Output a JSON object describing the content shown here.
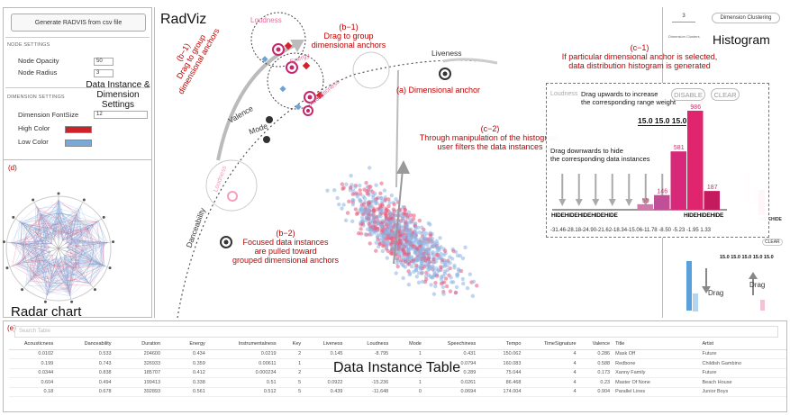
{
  "left": {
    "generate_button": "Generate RADVIS from csv file",
    "node_settings": "NODE SETTINGS",
    "node_opacity_label": "Node Opacity",
    "node_opacity_value": "50",
    "node_radius_label": "Node Radius",
    "node_radius_value": "3",
    "annot_settings": "Data Instance &\nDimension Settings",
    "dimension_settings": "DIMENSION SETTINGS",
    "font_size_label": "Dimension FontSize",
    "font_size_value": "12",
    "high_color_label": "High Color",
    "high_color": "#d0202a",
    "low_color_label": "Low Color",
    "low_color": "#7aa8d8",
    "panel_d": "(d)",
    "radar_title": "Radar chart"
  },
  "center": {
    "title": "RadViz",
    "b1_top": "(b−1)\nDrag to group\ndimensional anchors",
    "b1_left": "(b−1)\nDrag to group\ndimensional anchors",
    "anchor_label": "(a) Dimensional anchor",
    "c2": "(c−2)\nThrough manipulation of the histogram,\nuser filters the data instances",
    "b2": "(b−2)\nFocused data instances\nare pulled toward\ngrouped dimensional anchors",
    "c1": "(c−1)\nIf particular dimensional anchor is selected,\ndata distribution histogram is generated",
    "anchors": {
      "loudness": "Loudness",
      "energy": "Energy",
      "acousticness": "Acousticness",
      "liveness": "Liveness",
      "valence": "Valence",
      "mode": "Mode",
      "danceability": "Danceability",
      "loudness_ghost": "Loudness"
    }
  },
  "right": {
    "cluster_value": "3",
    "cluster_button": "Dimension Clustering",
    "cluster_label": "Dimension Clusters",
    "hist_title": "Histogram",
    "drag1": "Drag",
    "drag2": "Drag",
    "mini_clear": "CLEAR",
    "mini_hide": "HIDEHIDE",
    "mini_vals": "15.0 15.0 15.0 15.0 15.0"
  },
  "popup": {
    "title": "Loudness",
    "drag_up": "Drag upwards to increase\nthe corresponding range weight",
    "disable": "DISABLE",
    "clear": "CLEAR",
    "weights": "15.0 15.0 15.0",
    "drag_down": "Drag downwards to hide\nthe corresponding data instances",
    "hide_left": "HIDEHIDEHIDEHIDEHIDE",
    "hide_right": "HIDEHIDEHIDE",
    "ticks": "-31.46-28.18-24.90-21.62-18.34-15.06-11.78 -8.50  -5.23  -1.95  1.33",
    "bar_counts": [
      "55",
      "146",
      "581",
      "986",
      "187"
    ]
  },
  "chart_data": {
    "type": "bar",
    "title": "Loudness",
    "categories": [
      "-31.46",
      "-28.18",
      "-24.90",
      "-21.62",
      "-18.34",
      "-15.06",
      "-11.78",
      "-8.50",
      "-5.23",
      "-1.95"
    ],
    "values": [
      0,
      0,
      0,
      0,
      0,
      55,
      146,
      581,
      986,
      187
    ],
    "xlabel": "",
    "ylabel": ""
  },
  "table": {
    "search_placeholder": "Search Table",
    "title": "Data Instance Table",
    "panel_e": "(e)",
    "headers": [
      "Acousticness",
      "Danceability",
      "Duration",
      "Energy",
      "Instrumentalness",
      "Key",
      "Liveness",
      "Loudness",
      "Mode",
      "Speechiness",
      "Tempo",
      "TimeSignature",
      "Valence",
      "Title",
      "Artist"
    ],
    "rows": [
      [
        "0.0102",
        "0.533",
        "204600",
        "0.434",
        "0.0219",
        "2",
        "0.145",
        "-8.795",
        "1",
        "0.431",
        "150.062",
        "4",
        "0.286",
        "Mask Off",
        "Future"
      ],
      [
        "0.199",
        "0.743",
        "326933",
        "0.359",
        "0.00611",
        "1",
        "0.0",
        "",
        "0",
        "0.0794",
        "160.083",
        "4",
        "0.588",
        "Redbone",
        "Childish Gambino"
      ],
      [
        "0.0344",
        "0.838",
        "185707",
        "0.412",
        "0.000234",
        "2",
        "0.",
        "",
        "1",
        "0.289",
        "75.044",
        "4",
        "0.173",
        "Xanny Family",
        "Future"
      ],
      [
        "0.604",
        "0.494",
        "199413",
        "0.338",
        "0.51",
        "5",
        "0.0922",
        "-15.236",
        "1",
        "0.0261",
        "86.468",
        "4",
        "0.23",
        "Master Of None",
        "Beach House"
      ],
      [
        "0.18",
        "0.678",
        "392893",
        "0.561",
        "0.512",
        "5",
        "0.439",
        "-11.648",
        "0",
        "0.0694",
        "174.004",
        "4",
        "0.904",
        "Parallel Lines",
        "Junior Boys"
      ]
    ]
  }
}
